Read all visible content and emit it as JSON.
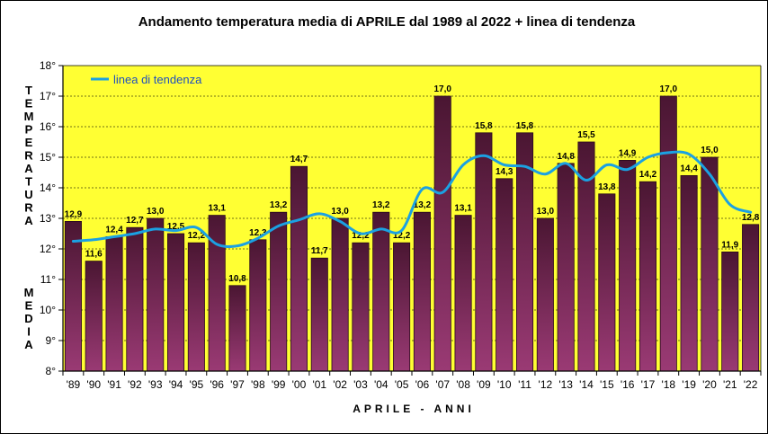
{
  "chart_data": {
    "type": "bar",
    "title": "Andamento temperatura media di APRILE dal 1989 al 2022 + linea di tendenza",
    "xlabel": "APRILE - ANNI",
    "ylabel": "TEMPERATURA MEDIA",
    "ylim": [
      8,
      18
    ],
    "ytick_labels": [
      "8°",
      "9°",
      "10°",
      "11°",
      "12°",
      "13°",
      "14°",
      "15°",
      "16°",
      "17°",
      "18°"
    ],
    "categories": [
      "'89",
      "'90",
      "'91",
      "'92",
      "'93",
      "'94",
      "'95",
      "'96",
      "'97",
      "'98",
      "'99",
      "'00",
      "'01",
      "'02",
      "'03",
      "'04",
      "'05",
      "'06",
      "'07",
      "'08",
      "'09",
      "'10",
      "'11",
      "'12",
      "'13",
      "'14",
      "'15",
      "'16",
      "'17",
      "'18",
      "'19",
      "'20",
      "'21",
      "'22"
    ],
    "values": [
      12.9,
      11.6,
      12.4,
      12.7,
      13.0,
      12.5,
      12.2,
      13.1,
      10.8,
      12.3,
      13.2,
      14.7,
      11.7,
      13.0,
      12.2,
      13.2,
      12.2,
      13.2,
      17.0,
      13.1,
      15.8,
      14.3,
      15.8,
      13.0,
      14.8,
      15.5,
      13.8,
      14.9,
      14.2,
      17.0,
      14.4,
      15.0,
      11.9,
      12.8
    ],
    "data_labels": [
      "12,9",
      "11,6",
      "12,4",
      "12,7",
      "13,0",
      "12,5",
      "12,2",
      "13,1",
      "10,8",
      "12,3",
      "13,2",
      "14,7",
      "11,7",
      "13,0",
      "12,2",
      "13,2",
      "12,2",
      "13,2",
      "17,0",
      "13,1",
      "15,8",
      "14,3",
      "15,8",
      "13,0",
      "14,8",
      "15,5",
      "13,8",
      "14,9",
      "14,2",
      "17,0",
      "14,4",
      "15,0",
      "11,9",
      "12,8"
    ],
    "series": [
      {
        "name": "linea di tendenza",
        "type": "line",
        "values": [
          12.25,
          12.3,
          12.4,
          12.5,
          12.65,
          12.6,
          12.7,
          12.15,
          12.1,
          12.35,
          12.75,
          12.95,
          13.15,
          12.9,
          12.5,
          12.65,
          12.6,
          13.95,
          13.85,
          14.75,
          15.05,
          14.75,
          14.7,
          14.45,
          14.8,
          14.25,
          14.75,
          14.6,
          15.0,
          15.15,
          15.1,
          14.45,
          13.45,
          13.2
        ]
      }
    ],
    "legend": "top-left",
    "colors": {
      "plot_bg": "#ffff33",
      "bar_top": "#4a1632",
      "bar_bottom": "#9a3a74",
      "trend_line": "#1ba1e2",
      "legend_text": "#1f4fbf"
    }
  }
}
